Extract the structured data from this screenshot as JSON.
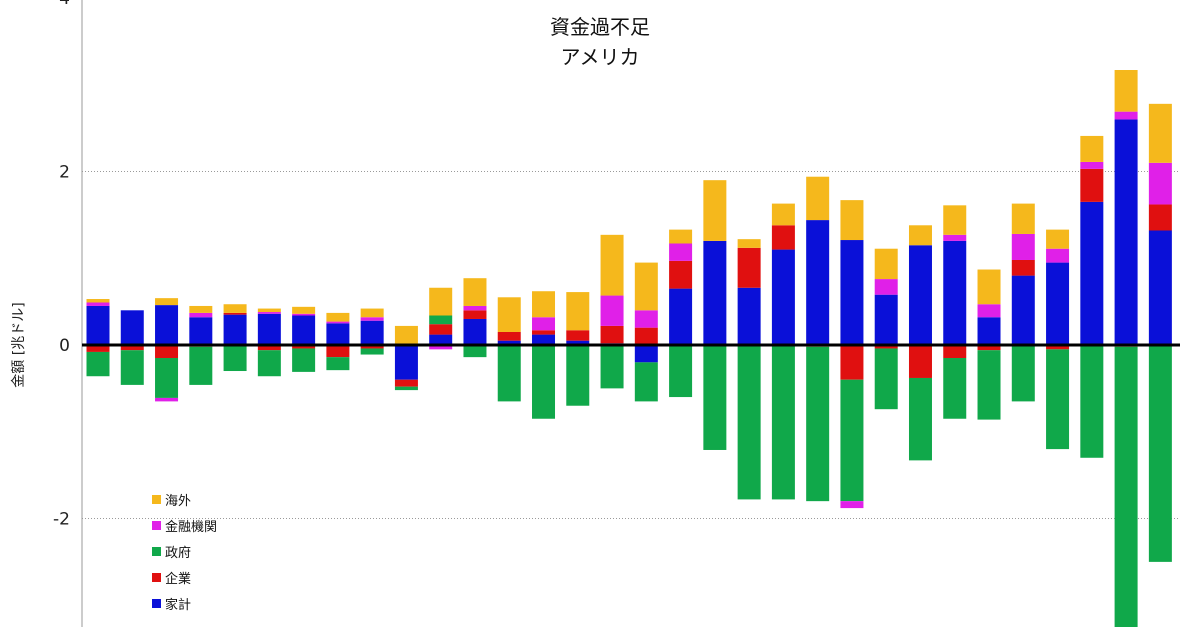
{
  "chart_data": {
    "type": "bar",
    "stacked": true,
    "title": "資金過不足",
    "subtitle": "アメリカ",
    "ylabel": "金額 [兆ドル]",
    "xlabel": "",
    "ylim": [
      -3.2,
      4
    ],
    "yticks": [
      -2,
      0,
      2,
      4
    ],
    "ytick_labels": [
      "-2",
      "0",
      "2",
      "4"
    ],
    "grid": true,
    "legend_position": "bottom-left",
    "series": [
      {
        "name": "家計",
        "color": "#0a10d8",
        "values": [
          0.45,
          0.4,
          0.46,
          0.32,
          0.35,
          0.36,
          0.34,
          0.25,
          0.28,
          -0.4,
          0.12,
          0.3,
          0.05,
          0.12,
          0.05,
          0.02,
          -0.2,
          0.65,
          1.2,
          0.66,
          1.1,
          1.44,
          1.21,
          0.58,
          1.15,
          1.2,
          0.32,
          0.8,
          0.95,
          1.65,
          2.6,
          1.32
        ]
      },
      {
        "name": "企業",
        "color": "#e01010",
        "values": [
          -0.08,
          -0.06,
          -0.15,
          -0.02,
          0.02,
          -0.06,
          -0.04,
          -0.14,
          -0.04,
          -0.08,
          0.12,
          0.1,
          0.1,
          0.05,
          0.12,
          0.2,
          0.2,
          0.32,
          -0.01,
          0.46,
          0.28,
          -0.02,
          -0.4,
          -0.04,
          -0.38,
          -0.15,
          -0.06,
          0.18,
          -0.05,
          0.38,
          -0.02,
          0.3
        ]
      },
      {
        "name": "政府",
        "color": "#10a84a",
        "values": [
          -0.28,
          -0.4,
          -0.46,
          -0.44,
          -0.3,
          -0.3,
          -0.27,
          -0.15,
          -0.07,
          -0.04,
          0.1,
          -0.14,
          -0.65,
          -0.85,
          -0.7,
          -0.5,
          -0.45,
          -0.6,
          -1.2,
          -1.78,
          -1.78,
          -1.78,
          -1.4,
          -0.7,
          -0.95,
          -0.7,
          -0.8,
          -0.65,
          -1.15,
          -1.3,
          -3.4,
          -2.5
        ]
      },
      {
        "name": "金融機関",
        "color": "#e020e8",
        "values": [
          0.04,
          0,
          -0.04,
          0.05,
          0,
          0.02,
          0.02,
          0.02,
          0.04,
          0,
          -0.05,
          0.05,
          0,
          0.15,
          0,
          0.35,
          0.2,
          0.2,
          0,
          0,
          0,
          0,
          -0.08,
          0.18,
          0,
          0.07,
          0.15,
          0.3,
          0.16,
          0.08,
          0.09,
          0.48
        ]
      },
      {
        "name": "海外",
        "color": "#f5b81c",
        "values": [
          0.04,
          0,
          0.08,
          0.08,
          0.1,
          0.04,
          0.08,
          0.1,
          0.1,
          0.22,
          0.32,
          0.32,
          0.4,
          0.3,
          0.44,
          0.7,
          0.55,
          0.16,
          0.7,
          0.1,
          0.25,
          0.5,
          0.46,
          0.35,
          0.23,
          0.34,
          0.4,
          0.35,
          0.22,
          0.3,
          0.48,
          0.68
        ]
      }
    ]
  }
}
